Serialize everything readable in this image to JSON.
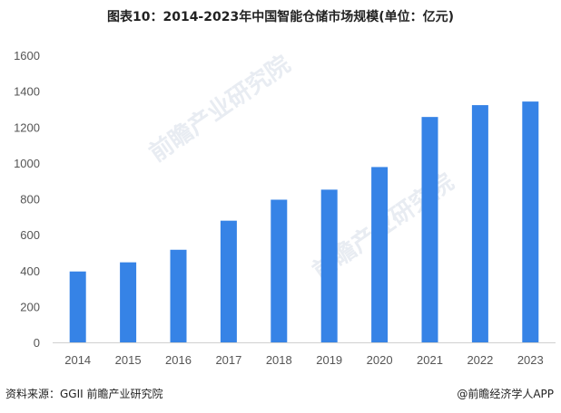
{
  "chart_data": {
    "type": "bar",
    "title": "图表10：2014-2023年中国智能仓储市场规模(单位：亿元)",
    "categories": [
      "2014",
      "2015",
      "2016",
      "2017",
      "2018",
      "2019",
      "2020",
      "2021",
      "2022",
      "2023"
    ],
    "values": [
      395,
      446,
      516,
      678,
      795,
      851,
      977,
      1256,
      1322,
      1342
    ],
    "ylim": [
      0,
      1600
    ],
    "yticks": [
      0,
      200,
      400,
      600,
      800,
      1000,
      1200,
      1400,
      1600
    ],
    "grid": false,
    "bar_color": "#3683e6"
  },
  "footer": {
    "source": "资料来源：GGII 前瞻产业研究院",
    "brand": "@前瞻经济学人APP"
  },
  "watermark": "前瞻产业研究院"
}
